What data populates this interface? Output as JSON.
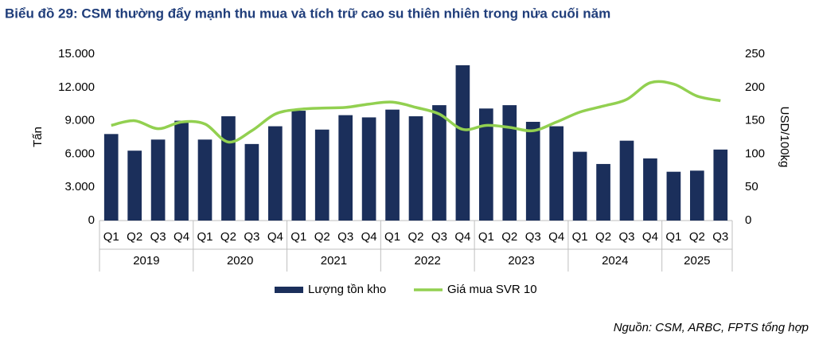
{
  "chart_data": {
    "type": "bar_line",
    "title": "Biểu đồ 29: CSM thường đẩy mạnh thu mua và tích trữ cao su thiên nhiên trong nửa cuối năm",
    "ylabel": "Tấn",
    "y2label": "USD/100kg",
    "source": "Nguồn: CSM, ARBC, FPTS tổng hợp",
    "groups": [
      {
        "label": "2019",
        "categories": [
          "Q1",
          "Q2",
          "Q3",
          "Q4"
        ]
      },
      {
        "label": "2020",
        "categories": [
          "Q1",
          "Q2",
          "Q3",
          "Q4"
        ]
      },
      {
        "label": "2021",
        "categories": [
          "Q1",
          "Q2",
          "Q3",
          "Q4"
        ]
      },
      {
        "label": "2022",
        "categories": [
          "Q1",
          "Q2",
          "Q3",
          "Q4"
        ]
      },
      {
        "label": "2023",
        "categories": [
          "Q1",
          "Q2",
          "Q3",
          "Q4"
        ]
      },
      {
        "label": "2024",
        "categories": [
          "Q1",
          "Q2",
          "Q3",
          "Q4"
        ]
      },
      {
        "label": "2025",
        "categories": [
          "Q1",
          "Q2",
          "Q3"
        ]
      }
    ],
    "series": [
      {
        "name": "Lượng tồn kho",
        "type": "bar",
        "color": "#1b2f5b",
        "values": [
          7800,
          6300,
          7300,
          9000,
          7300,
          9400,
          6900,
          8500,
          9900,
          8200,
          9500,
          9300,
          10000,
          9400,
          10400,
          14000,
          10100,
          10400,
          8900,
          8500,
          6200,
          5100,
          7200,
          5600,
          4400,
          4500,
          6400
        ]
      },
      {
        "name": "Giá mua SVR 10",
        "type": "line",
        "axis": "y2",
        "color": "#92d050",
        "values": [
          143,
          150,
          138,
          148,
          145,
          118,
          135,
          160,
          167,
          169,
          170,
          175,
          178,
          170,
          160,
          137,
          143,
          140,
          135,
          148,
          163,
          172,
          182,
          207,
          205,
          187,
          180
        ]
      }
    ],
    "ylim": [
      0,
      15000
    ],
    "yticks": [
      0,
      {
        "value": 3000,
        "label": "3.000"
      },
      {
        "value": 6000,
        "label": "6.000"
      },
      {
        "value": 9000,
        "label": "9.000"
      },
      {
        "value": 12000,
        "label": "12.000"
      },
      {
        "value": 15000,
        "label": "15.000"
      }
    ],
    "y2lim": [
      0,
      250
    ],
    "y2ticks": [
      0,
      50,
      100,
      150,
      200,
      250
    ]
  }
}
